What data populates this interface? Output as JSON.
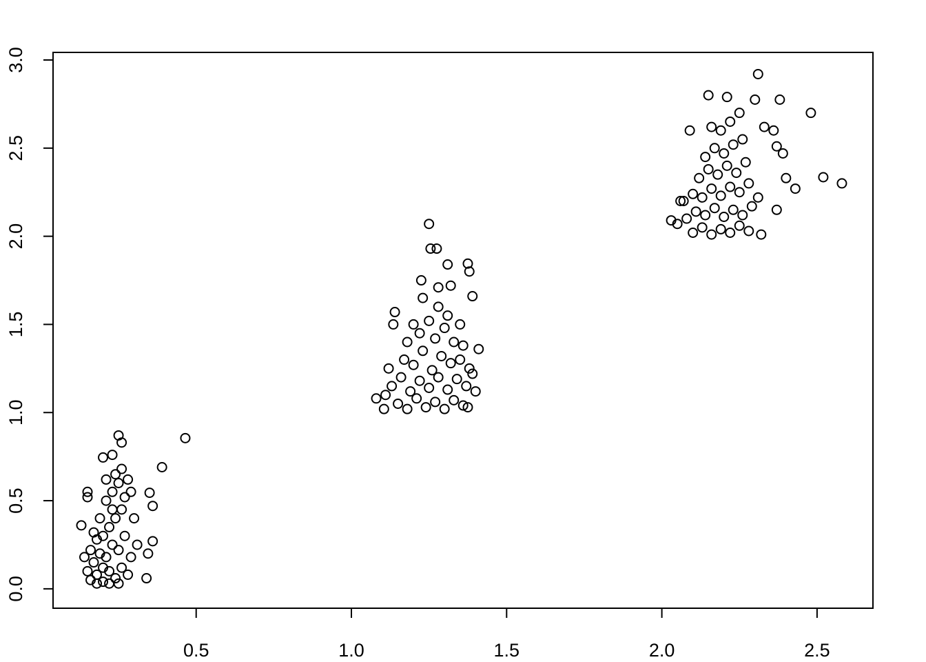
{
  "chart_data": {
    "type": "scatter",
    "color": "#000000",
    "marker": "open-circle",
    "xlim": [
      0.039,
      2.68
    ],
    "ylim": [
      -0.11,
      3.043
    ],
    "xticks": [
      0.5,
      {
        "value": 1,
        "label": "1.0"
      },
      1.5,
      {
        "value": 2,
        "label": "2.0"
      },
      2.5
    ],
    "yticks": [
      {
        "value": 0,
        "label": "0.0"
      },
      0.5,
      {
        "value": 1,
        "label": "1.0"
      },
      1.5,
      {
        "value": 2,
        "label": "2.0"
      },
      2.5,
      {
        "value": 3,
        "label": "3.0"
      }
    ],
    "x": [
      0.16,
      0.18,
      0.2,
      0.22,
      0.24,
      0.26,
      0.17,
      0.19,
      0.21,
      0.23,
      0.25,
      0.27,
      0.15,
      0.28,
      0.2,
      0.22,
      0.24,
      0.26,
      0.21,
      0.23,
      0.25,
      0.19,
      0.18,
      0.29,
      0.3,
      0.27,
      0.24,
      0.21,
      0.17,
      0.16,
      0.31,
      0.14,
      0.2,
      0.22,
      0.25,
      0.18,
      0.28,
      0.26,
      0.29,
      0.23,
      0.465,
      0.39,
      0.25,
      0.26,
      0.35,
      0.36,
      0.345,
      0.34,
      0.36,
      0.2,
      0.15,
      0.15,
      0.13,
      0.23,
      1.15,
      1.18,
      1.21,
      1.24,
      1.27,
      1.3,
      1.33,
      1.36,
      1.13,
      1.16,
      1.19,
      1.22,
      1.25,
      1.28,
      1.31,
      1.34,
      1.37,
      1.12,
      1.17,
      1.2,
      1.23,
      1.26,
      1.29,
      1.32,
      1.35,
      1.38,
      1.18,
      1.22,
      1.27,
      1.3,
      1.33,
      1.36,
      1.25,
      1.31,
      1.35,
      1.2,
      1.11,
      1.39,
      1.28,
      1.23,
      1.25,
      1.255,
      1.275,
      1.375,
      1.31,
      1.38,
      1.225,
      1.39,
      1.32,
      1.14,
      1.135,
      1.08,
      1.105,
      1.41,
      1.4,
      1.375,
      1.28,
      2.1,
      2.13,
      2.16,
      2.19,
      2.22,
      2.25,
      2.28,
      2.08,
      2.11,
      2.14,
      2.17,
      2.2,
      2.23,
      2.26,
      2.29,
      2.07,
      2.1,
      2.13,
      2.16,
      2.19,
      2.22,
      2.25,
      2.28,
      2.12,
      2.15,
      2.18,
      2.21,
      2.24,
      2.27,
      2.14,
      2.17,
      2.2,
      2.23,
      2.26,
      2.19,
      2.22,
      2.25,
      2.05,
      2.31,
      2.16,
      2.31,
      2.15,
      2.21,
      2.38,
      2.3,
      2.48,
      2.58,
      2.52,
      2.43,
      2.4,
      2.37,
      2.32,
      2.03,
      2.36,
      2.37,
      2.39,
      2.09,
      2.06,
      2.33
    ],
    "values": [
      0.05,
      0.08,
      0.04,
      0.1,
      0.06,
      0.12,
      0.15,
      0.2,
      0.18,
      0.25,
      0.22,
      0.3,
      0.1,
      0.08,
      0.3,
      0.35,
      0.4,
      0.45,
      0.5,
      0.55,
      0.6,
      0.4,
      0.28,
      0.18,
      0.4,
      0.52,
      0.65,
      0.62,
      0.32,
      0.22,
      0.25,
      0.18,
      0.12,
      0.03,
      0.03,
      0.03,
      0.62,
      0.68,
      0.55,
      0.45,
      0.855,
      0.69,
      0.87,
      0.83,
      0.545,
      0.47,
      0.2,
      0.06,
      0.27,
      0.745,
      0.55,
      0.52,
      0.36,
      0.76,
      1.05,
      1.02,
      1.08,
      1.03,
      1.06,
      1.02,
      1.07,
      1.04,
      1.15,
      1.2,
      1.12,
      1.18,
      1.14,
      1.2,
      1.13,
      1.19,
      1.15,
      1.25,
      1.3,
      1.27,
      1.35,
      1.24,
      1.32,
      1.28,
      1.3,
      1.25,
      1.4,
      1.45,
      1.42,
      1.48,
      1.4,
      1.38,
      1.52,
      1.55,
      1.5,
      1.5,
      1.1,
      1.22,
      1.6,
      1.65,
      2.07,
      1.93,
      1.93,
      1.845,
      1.84,
      1.8,
      1.75,
      1.66,
      1.72,
      1.57,
      1.5,
      1.08,
      1.02,
      1.36,
      1.12,
      1.03,
      1.71,
      2.02,
      2.05,
      2.01,
      2.04,
      2.02,
      2.06,
      2.03,
      2.1,
      2.14,
      2.12,
      2.16,
      2.11,
      2.15,
      2.12,
      2.17,
      2.2,
      2.24,
      2.22,
      2.27,
      2.23,
      2.28,
      2.25,
      2.3,
      2.33,
      2.38,
      2.35,
      2.4,
      2.36,
      2.42,
      2.45,
      2.5,
      2.47,
      2.52,
      2.55,
      2.6,
      2.65,
      2.7,
      2.07,
      2.22,
      2.62,
      2.92,
      2.8,
      2.79,
      2.775,
      2.775,
      2.7,
      2.3,
      2.335,
      2.27,
      2.33,
      2.15,
      2.01,
      2.09,
      2.6,
      2.51,
      2.47,
      2.6,
      2.2,
      2.62
    ]
  }
}
